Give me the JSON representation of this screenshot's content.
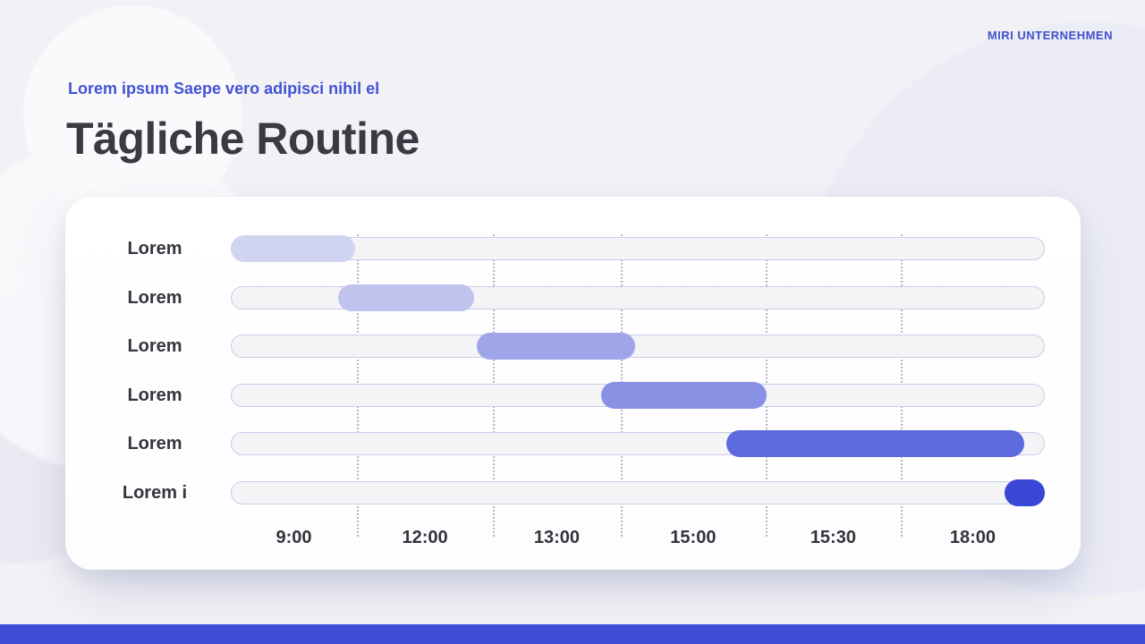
{
  "brand": "MIRI UNTERNEHMEN",
  "header": {
    "subtitle": "Lorem ipsum Saepe vero adipisci nihil el",
    "title": "Tägliche Routine"
  },
  "colors": {
    "accent": "#3e4cd6",
    "subtitle_blue": "#4253d4",
    "brand_blue": "#4152cc",
    "title_dark": "#3a3a44",
    "footer_bar": "#3e4cd6",
    "track_fill": "#f4f4f6",
    "track_border": "#c9cce9",
    "gridline": "#b6b7c1"
  },
  "chart_data": {
    "type": "gantt",
    "title": "Tägliche Routine",
    "x_tick_labels": [
      "9:00",
      "12:00",
      "13:00",
      "15:00",
      "15:30",
      "18:00"
    ],
    "x_tick_centers_pct": [
      7.75,
      23.85,
      40.05,
      56.8,
      74.0,
      91.15
    ],
    "gridlines_pct": [
      15.5,
      32.2,
      47.9,
      65.7,
      82.3
    ],
    "grid": "dotted-vertical",
    "rows": [
      {
        "label": "Lorem",
        "start_pct": 0.0,
        "end_pct": 15.3,
        "color": "#d1d4f1"
      },
      {
        "label": "Lorem",
        "start_pct": 13.2,
        "end_pct": 29.9,
        "color": "#bfc3ee"
      },
      {
        "label": "Lorem",
        "start_pct": 30.2,
        "end_pct": 49.7,
        "color": "#9ea5e9"
      },
      {
        "label": "Lorem",
        "start_pct": 45.5,
        "end_pct": 65.8,
        "color": "#8890e4"
      },
      {
        "label": "Lorem",
        "start_pct": 60.9,
        "end_pct": 97.5,
        "color": "#5d6ade"
      },
      {
        "label": "Lorem i",
        "start_pct": 95.1,
        "end_pct": 100.0,
        "color": "#3a47d5"
      }
    ]
  }
}
